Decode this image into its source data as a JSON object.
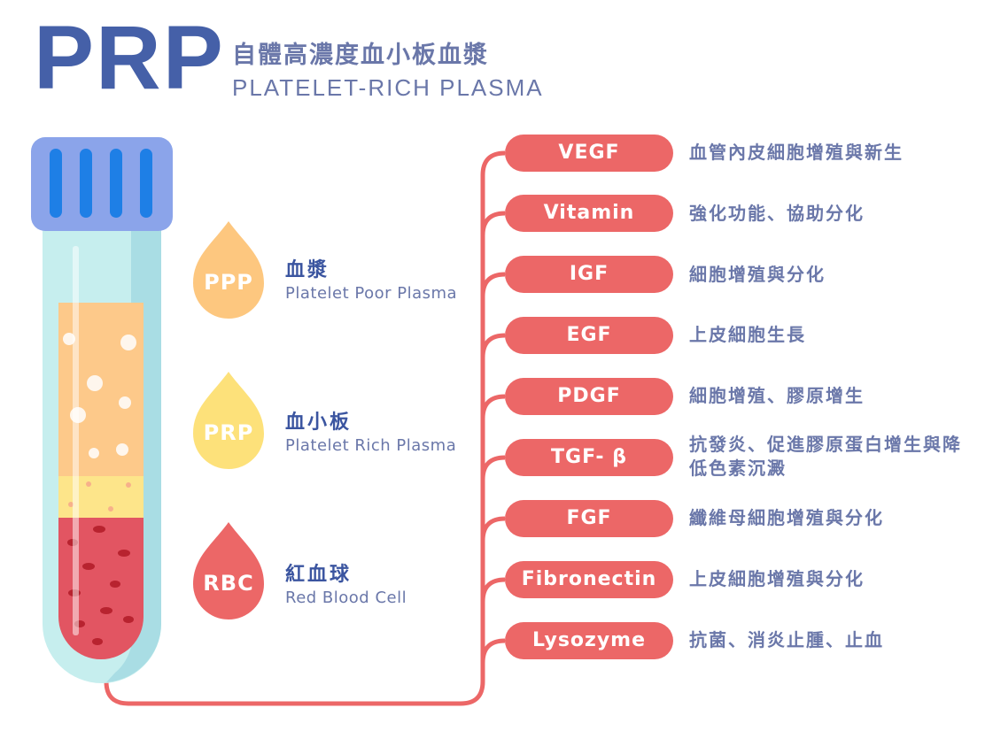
{
  "header": {
    "title": "PRP",
    "title_zh": "自體高濃度血小板血漿",
    "title_en": "PLATELET-RICH PLASMA"
  },
  "colors": {
    "title": "#4560a8",
    "text": "#6a77a9",
    "accent_red": "#ec6767",
    "ppp": "#fdc77f",
    "prp": "#fde17a",
    "cap": "#8ba4ea",
    "cap_bars": "#1e7fe6"
  },
  "layers": [
    {
      "abbr": "PPP",
      "name_zh": "血漿",
      "name_en": "Platelet Poor Plasma",
      "icon": "drop-icon"
    },
    {
      "abbr": "PRP",
      "name_zh": "血小板",
      "name_en": "Platelet Rich Plasma",
      "icon": "drop-icon"
    },
    {
      "abbr": "RBC",
      "name_zh": "紅血球",
      "name_en": "Red Blood Cell",
      "icon": "drop-icon"
    }
  ],
  "factors": [
    {
      "name": "VEGF",
      "desc": "血管內皮細胞增殖與新生"
    },
    {
      "name": "Vitamin",
      "desc": "強化功能、協助分化"
    },
    {
      "name": "IGF",
      "desc": "細胞增殖與分化"
    },
    {
      "name": "EGF",
      "desc": "上皮細胞生長"
    },
    {
      "name": "PDGF",
      "desc": "細胞增殖、膠原增生"
    },
    {
      "name": "TGF- β",
      "desc": "抗發炎、促進膠原蛋白增生與降低色素沉澱"
    },
    {
      "name": "FGF",
      "desc": "纖維母細胞增殖與分化"
    },
    {
      "name": "Fibronectin",
      "desc": "上皮細胞增殖與分化"
    },
    {
      "name": "Lysozyme",
      "desc": "抗菌、消炎止腫、止血"
    }
  ]
}
